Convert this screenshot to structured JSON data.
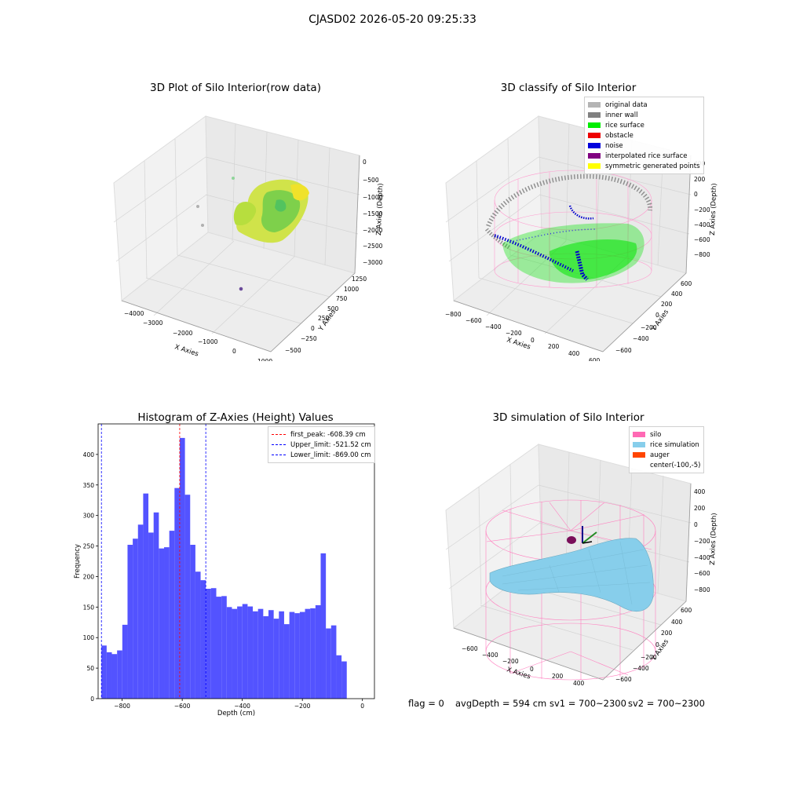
{
  "suptitle": "CJASD02 2026-05-20 09:25:33",
  "panel_raw": {
    "title": "3D Plot of Silo Interior(row data)",
    "xlabel": "X Axies",
    "ylabel": "Y Axies",
    "zlabel": "Z Axies (Depth)",
    "xticks": [
      "−4000",
      "−3000",
      "−2000",
      "−1000",
      "0",
      "1000"
    ],
    "yticks": [
      "−500",
      "−250",
      "0",
      "250",
      "500",
      "750",
      "1000",
      "1250"
    ],
    "zticks": [
      "0",
      "−500",
      "−1000",
      "−1500",
      "−2000",
      "−2500",
      "−3000"
    ]
  },
  "panel_classify": {
    "title": "3D classify of Silo Interior",
    "xlabel": "X Axies",
    "ylabel": "Y Axies",
    "zlabel": "Z Axies (Depth)",
    "xticks": [
      "−800",
      "−600",
      "−400",
      "−200",
      "0",
      "200",
      "400",
      "600"
    ],
    "yticks": [
      "−600",
      "−400",
      "−200",
      "0",
      "200",
      "400",
      "600"
    ],
    "zticks": [
      "400",
      "200",
      "0",
      "−200",
      "−400",
      "−600",
      "−800"
    ],
    "legend": [
      {
        "label": "original data",
        "color": "#b4b4b4"
      },
      {
        "label": "inner wall",
        "color": "#808080"
      },
      {
        "label": "rice surface",
        "color": "#00ee00"
      },
      {
        "label": "obstacle",
        "color": "#ee0000"
      },
      {
        "label": "noise",
        "color": "#0000dd"
      },
      {
        "label": "interpolated rice surface",
        "color": "#800080"
      },
      {
        "label": "symmetric generated points",
        "color": "#ffff00"
      }
    ]
  },
  "panel_sim": {
    "title": "3D simulation of Silo Interior",
    "xlabel": "X Axies",
    "ylabel": "Y Axies",
    "zlabel": "Z Axies (Depth)",
    "xticks": [
      "−600",
      "−400",
      "−200",
      "0",
      "200",
      "400"
    ],
    "yticks": [
      "−600",
      "−400",
      "−200",
      "0",
      "200",
      "400",
      "600"
    ],
    "zticks": [
      "400",
      "200",
      "0",
      "−200",
      "−400",
      "−600",
      "−800"
    ],
    "legend": [
      {
        "label": "silo",
        "color": "#ff69b4"
      },
      {
        "label": "rice simulation",
        "color": "#87ceeb"
      },
      {
        "label": "auger",
        "color": "#ff4500"
      },
      {
        "label": "center(-100,-5)",
        "color": ""
      }
    ]
  },
  "footer": {
    "flag": "flag = 0",
    "avg": "avgDepth = 594 cm",
    "sv1": "sv1 = 700~2300",
    "sv2": "sv2 = 700~2300"
  },
  "chart_data": [
    {
      "type": "bar",
      "title": "Histogram of Z-Axies (Height) Values",
      "xlabel": "Depth (cm)",
      "ylabel": "Frequency",
      "xlim": [
        -880,
        40
      ],
      "ylim": [
        0,
        450
      ],
      "xticks": [
        -800,
        -600,
        -400,
        -200,
        0
      ],
      "yticks": [
        0,
        50,
        100,
        150,
        200,
        250,
        300,
        350,
        400
      ],
      "bin_start": -869,
      "bin_width": 17.38,
      "values": [
        87,
        76,
        73,
        79,
        121,
        252,
        262,
        285,
        336,
        272,
        305,
        246,
        248,
        275,
        345,
        427,
        334,
        252,
        208,
        194,
        180,
        181,
        167,
        168,
        150,
        147,
        151,
        155,
        151,
        143,
        147,
        135,
        145,
        131,
        143,
        122,
        142,
        140,
        142,
        147,
        148,
        153,
        238,
        115,
        120,
        71,
        61
      ],
      "vlines": [
        {
          "label": "first_peak: -608.39 cm",
          "x": -608.39,
          "color": "#ff0000"
        },
        {
          "label": "Upper_limit: -521.52 cm",
          "x": -521.52,
          "color": "#0000ff"
        },
        {
          "label": "Lower_limit: -869.00 cm",
          "x": -869.0,
          "color": "#0000ff"
        }
      ],
      "bar_color": "#4a4aff"
    }
  ]
}
